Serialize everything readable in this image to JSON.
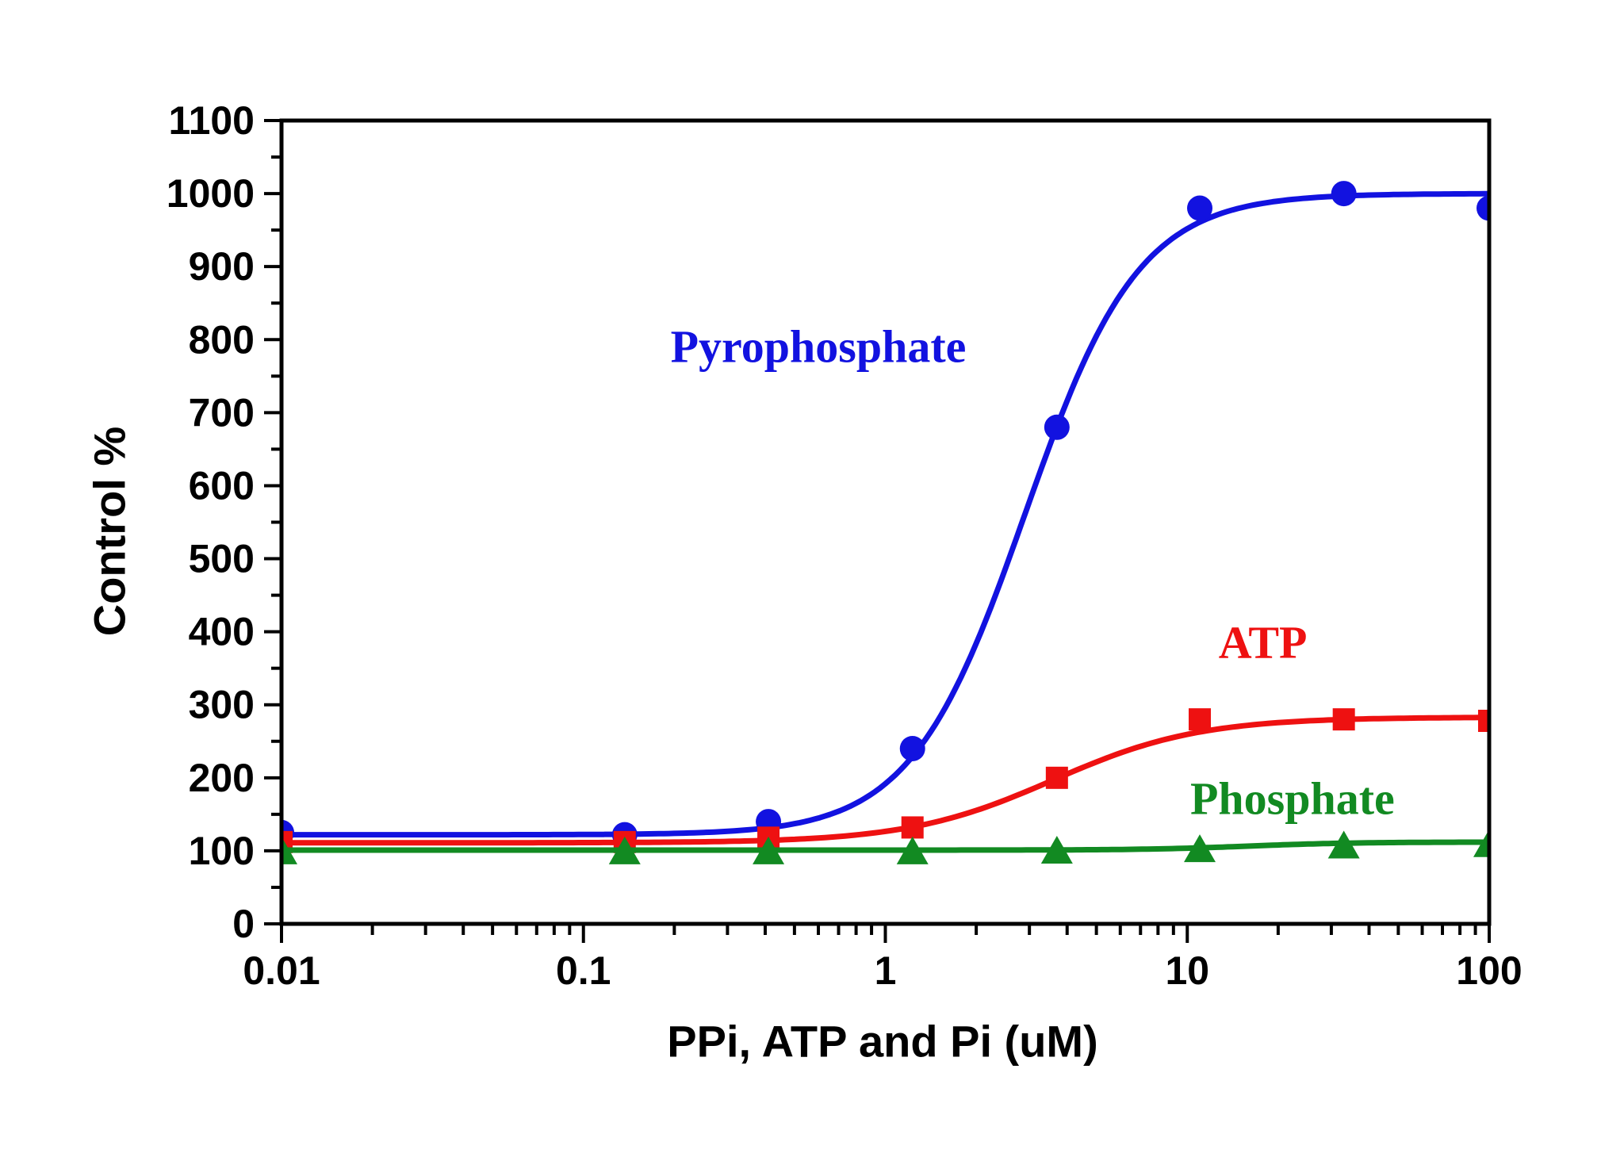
{
  "figure": {
    "background": "#ffffff"
  },
  "chart_data": {
    "type": "line",
    "title": "",
    "xlabel": "PPi, ATP and Pi (uM)",
    "ylabel": "Control %",
    "x_scale": "log",
    "xlim": [
      0.01,
      100
    ],
    "ylim": [
      0,
      1100
    ],
    "grid": false,
    "legend_position": "inline-annotations",
    "axis_color": "#000000",
    "y_major_tick_step": 100,
    "y_minor_tick_step": 50,
    "y_tick_labels": [
      "0",
      "100",
      "200",
      "300",
      "400",
      "500",
      "600",
      "700",
      "800",
      "900",
      "1000",
      "1100"
    ],
    "x_major_ticks": [
      0.01,
      0.1,
      1,
      10,
      100
    ],
    "x_tick_labels": [
      "0.01",
      "0.1",
      "1",
      "10",
      "100"
    ],
    "series": [
      {
        "name": "Pyrophosphate",
        "color": "#1212e0",
        "marker": "circle",
        "x": [
          0.01,
          0.137,
          0.41,
          1.23,
          3.7,
          11,
          33,
          100
        ],
        "y": [
          125,
          122,
          140,
          240,
          680,
          980,
          1000,
          980
        ],
        "fit_curve": {
          "model": "hill",
          "bottom": 122,
          "top": 1000,
          "ec50": 2.9,
          "hill": 2.3
        },
        "label_anchor": {
          "x": 0.6,
          "y": 790
        }
      },
      {
        "name": "ATP",
        "color": "#ee1111",
        "marker": "square",
        "x": [
          0.01,
          0.137,
          0.41,
          1.23,
          3.7,
          11,
          33,
          100
        ],
        "y": [
          112,
          112,
          118,
          132,
          200,
          280,
          280,
          278
        ],
        "fit_curve": {
          "model": "hill",
          "bottom": 111,
          "top": 283,
          "ec50": 3.6,
          "hill": 1.8
        },
        "label_anchor": {
          "x": 17.8,
          "y": 385
        }
      },
      {
        "name": "Phosphate",
        "color": "#128a22",
        "marker": "triangle",
        "x": [
          0.01,
          0.137,
          0.41,
          1.23,
          3.7,
          11,
          33,
          100
        ],
        "y": [
          100,
          100,
          100,
          100,
          101,
          103,
          108,
          110
        ],
        "fit_curve": {
          "model": "hill",
          "bottom": 101,
          "top": 112,
          "ec50": 16,
          "hill": 2.5
        },
        "label_anchor": {
          "x": 22.3,
          "y": 172
        }
      }
    ]
  }
}
